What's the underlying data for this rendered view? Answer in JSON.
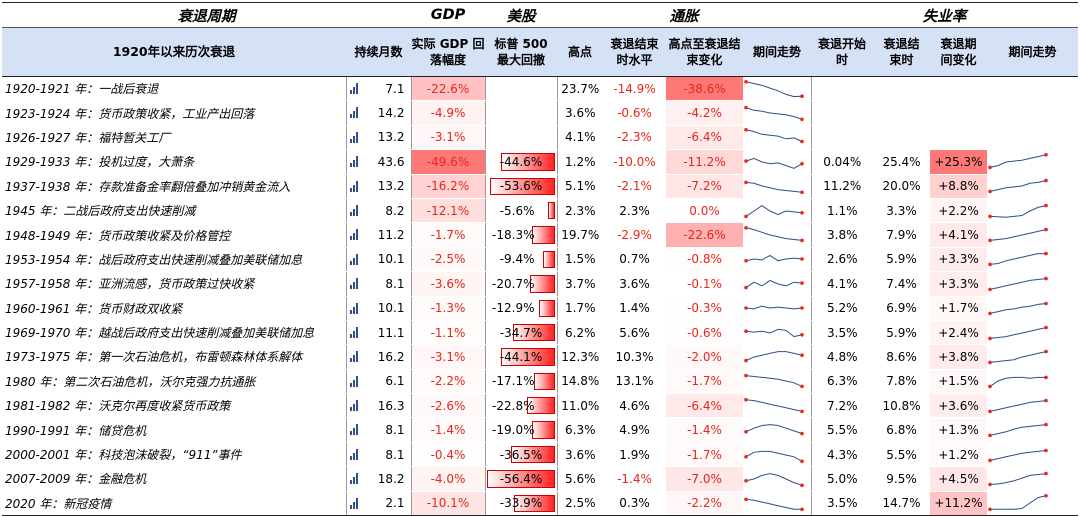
{
  "groups": {
    "recession": "衰退周期",
    "gdp": "GDP",
    "stocks": "美股",
    "inflation": "通胀",
    "unemployment": "失业率"
  },
  "headers": {
    "title": "1920年以来历次衰退",
    "duration": "持续月数",
    "gdp_drop": "实际 GDP 回落幅度",
    "sp500": "标普 500 最大回撤",
    "cpi_peak": "高点",
    "cpi_end": "衰退结束时水平",
    "cpi_change": "高点至衰退结束变化",
    "cpi_trend": "期间走势",
    "ue_start": "衰退开始时",
    "ue_end": "衰退结束时",
    "ue_change": "衰退期间变化",
    "ue_trend": "期间走势"
  },
  "rows": [
    {
      "name": "1920-1921 年：一战后衰退",
      "dur": "7.1",
      "gdp": "-22.6%",
      "gdp_v": 22.6,
      "sp": "",
      "sp_v": null,
      "peak": "23.7%",
      "end": "-14.9%",
      "chg": "-38.6%",
      "chg_v": 38.6,
      "ue_s": "",
      "ue_e": "",
      "ue_c": "",
      "ue_v": null,
      "cpi_line": [
        0.1,
        0.2,
        0.3,
        0.45,
        0.6,
        0.8,
        0.92,
        0.9
      ],
      "ue_line": null
    },
    {
      "name": "1923-1924 年：货币政策收紧，工业产出回落",
      "dur": "14.2",
      "gdp": "-4.9%",
      "gdp_v": 4.9,
      "sp": "",
      "sp_v": null,
      "peak": "3.6%",
      "end": "-0.6%",
      "chg": "-4.2%",
      "chg_v": 4.2,
      "ue_s": "",
      "ue_e": "",
      "ue_c": "",
      "ue_v": null,
      "cpi_line": [
        0.2,
        0.35,
        0.4,
        0.5,
        0.55,
        0.6,
        0.7,
        0.85
      ],
      "ue_line": null
    },
    {
      "name": "1926-1927 年：福特暂关工厂",
      "dur": "13.2",
      "gdp": "-3.1%",
      "gdp_v": 3.1,
      "sp": "",
      "sp_v": null,
      "peak": "4.1%",
      "end": "-2.3%",
      "chg": "-6.4%",
      "chg_v": 6.4,
      "ue_s": "",
      "ue_e": "",
      "ue_c": "",
      "ue_v": null,
      "cpi_line": [
        0.1,
        0.2,
        0.35,
        0.4,
        0.45,
        0.6,
        0.55,
        0.75
      ],
      "ue_line": null
    },
    {
      "name": "1929-1933 年：投机过度，大萧条",
      "dur": "43.6",
      "gdp": "-49.6%",
      "gdp_v": 49.6,
      "sp": "-44.6%",
      "sp_v": 44.6,
      "peak": "1.2%",
      "end": "-10.0%",
      "chg": "-11.2%",
      "chg_v": 11.2,
      "ue_s": "0.04%",
      "ue_e": "25.4%",
      "ue_c": "+25.3%",
      "ue_v": 25.3,
      "cpi_line": [
        0.45,
        0.3,
        0.5,
        0.6,
        0.55,
        0.7,
        0.85,
        0.6
      ],
      "ue_line": [
        0.8,
        0.7,
        0.5,
        0.45,
        0.4,
        0.3,
        0.2,
        0.1
      ]
    },
    {
      "name": "1937-1938 年：存款准备金率翻倍叠加冲销黄金流入",
      "dur": "13.2",
      "gdp": "-16.2%",
      "gdp_v": 16.2,
      "sp": "-53.6%",
      "sp_v": 53.6,
      "peak": "5.1%",
      "end": "-2.1%",
      "chg": "-7.2%",
      "chg_v": 7.2,
      "ue_s": "11.2%",
      "ue_e": "20.0%",
      "ue_c": "+8.8%",
      "ue_v": 8.8,
      "cpi_line": [
        0.3,
        0.35,
        0.5,
        0.6,
        0.7,
        0.75,
        0.8,
        0.85
      ],
      "ue_line": [
        0.8,
        0.7,
        0.6,
        0.55,
        0.5,
        0.35,
        0.3,
        0.2
      ]
    },
    {
      "name": "1945 年：二战后政府支出快速削减",
      "dur": "8.2",
      "gdp": "-12.1%",
      "gdp_v": 12.1,
      "sp": "-5.6%",
      "sp_v": 5.6,
      "peak": "2.3%",
      "end": "2.3%",
      "chg": "0.0%",
      "chg_v": 0,
      "ue_s": "1.1%",
      "ue_e": "3.3%",
      "ue_c": "+2.2%",
      "ue_v": 2.2,
      "cpi_line": [
        0.8,
        0.5,
        0.2,
        0.5,
        0.7,
        0.5,
        0.55,
        0.6
      ],
      "ue_line": [
        0.8,
        0.82,
        0.85,
        0.8,
        0.75,
        0.5,
        0.3,
        0.2
      ]
    },
    {
      "name": "1948-1949 年：货币政策收紧及价格管控",
      "dur": "11.2",
      "gdp": "-1.7%",
      "gdp_v": 1.7,
      "sp": "-18.3%",
      "sp_v": 18.3,
      "peak": "19.7%",
      "end": "-2.9%",
      "chg": "-22.6%",
      "chg_v": 22.6,
      "ue_s": "3.8%",
      "ue_e": "7.9%",
      "ue_c": "+4.1%",
      "ue_v": 4.1,
      "cpi_line": [
        0.1,
        0.2,
        0.35,
        0.5,
        0.6,
        0.7,
        0.75,
        0.8
      ],
      "ue_line": [
        0.8,
        0.75,
        0.7,
        0.6,
        0.5,
        0.4,
        0.3,
        0.2
      ]
    },
    {
      "name": "1953-1954 年：战后政府支出快速削减叠加美联储加息",
      "dur": "10.1",
      "gdp": "-2.5%",
      "gdp_v": 2.5,
      "sp": "-9.4%",
      "sp_v": 9.4,
      "peak": "1.5%",
      "end": "0.7%",
      "chg": "-0.8%",
      "chg_v": 0.8,
      "ue_s": "2.6%",
      "ue_e": "5.9%",
      "ue_c": "+3.3%",
      "ue_v": 3.3,
      "cpi_line": [
        0.6,
        0.5,
        0.55,
        0.3,
        0.6,
        0.5,
        0.45,
        0.5
      ],
      "ue_line": [
        0.8,
        0.75,
        0.6,
        0.5,
        0.4,
        0.3,
        0.2,
        0.2
      ]
    },
    {
      "name": "1957-1958 年：亚洲流感，货币政策过快收紧",
      "dur": "8.1",
      "gdp": "-3.6%",
      "gdp_v": 3.6,
      "sp": "-20.7%",
      "sp_v": 20.7,
      "peak": "3.7%",
      "end": "3.6%",
      "chg": "-0.1%",
      "chg_v": 0.1,
      "ue_s": "4.1%",
      "ue_e": "7.4%",
      "ue_c": "+3.3%",
      "ue_v": 3.3,
      "cpi_line": [
        0.7,
        0.4,
        0.6,
        0.3,
        0.5,
        0.6,
        0.4,
        0.45
      ],
      "ue_line": [
        0.8,
        0.7,
        0.6,
        0.5,
        0.4,
        0.3,
        0.25,
        0.2
      ]
    },
    {
      "name": "1960-1961 年：货币财政双收紧",
      "dur": "10.1",
      "gdp": "-1.3%",
      "gdp_v": 1.3,
      "sp": "-12.9%",
      "sp_v": 12.9,
      "peak": "1.7%",
      "end": "1.4%",
      "chg": "-0.3%",
      "chg_v": 0.3,
      "ue_s": "5.2%",
      "ue_e": "6.9%",
      "ue_c": "+1.7%",
      "ue_v": 1.7,
      "cpi_line": [
        0.5,
        0.55,
        0.4,
        0.5,
        0.45,
        0.5,
        0.55,
        0.5
      ],
      "ue_line": [
        0.8,
        0.7,
        0.6,
        0.55,
        0.45,
        0.4,
        0.3,
        0.25
      ]
    },
    {
      "name": "1969-1970 年：越战后政府支出快速削减叠加美联储加息",
      "dur": "11.1",
      "gdp": "-1.1%",
      "gdp_v": 1.1,
      "sp": "-34.7%",
      "sp_v": 34.7,
      "peak": "6.2%",
      "end": "5.6%",
      "chg": "-0.6%",
      "chg_v": 0.6,
      "ue_s": "3.5%",
      "ue_e": "5.9%",
      "ue_c": "+2.4%",
      "ue_v": 2.4,
      "cpi_line": [
        0.4,
        0.45,
        0.4,
        0.5,
        0.3,
        0.35,
        0.7,
        0.6
      ],
      "ue_line": [
        0.8,
        0.75,
        0.7,
        0.6,
        0.5,
        0.4,
        0.3,
        0.2
      ]
    },
    {
      "name": "1973-1975 年：第一次石油危机，布雷顿森林体系解体",
      "dur": "16.2",
      "gdp": "-3.1%",
      "gdp_v": 3.1,
      "sp": "-44.1%",
      "sp_v": 44.1,
      "peak": "12.3%",
      "end": "10.3%",
      "chg": "-2.0%",
      "chg_v": 2.0,
      "ue_s": "4.8%",
      "ue_e": "8.6%",
      "ue_c": "+3.8%",
      "ue_v": 3.8,
      "cpi_line": [
        0.7,
        0.5,
        0.4,
        0.3,
        0.2,
        0.2,
        0.3,
        0.4
      ],
      "ue_line": [
        0.8,
        0.75,
        0.7,
        0.65,
        0.5,
        0.4,
        0.3,
        0.2
      ]
    },
    {
      "name": "1980 年：第二次石油危机，沃尔克强力抗通胀",
      "dur": "6.1",
      "gdp": "-2.2%",
      "gdp_v": 2.2,
      "sp": "-17.1%",
      "sp_v": 17.1,
      "peak": "14.8%",
      "end": "13.1%",
      "chg": "-1.7%",
      "chg_v": 1.7,
      "ue_s": "6.3%",
      "ue_e": "7.8%",
      "ue_c": "+1.5%",
      "ue_v": 1.5,
      "cpi_line": [
        0.2,
        0.25,
        0.3,
        0.35,
        0.4,
        0.5,
        0.6,
        0.8
      ],
      "ue_line": [
        0.8,
        0.5,
        0.35,
        0.3,
        0.3,
        0.35,
        0.3,
        0.3
      ]
    },
    {
      "name": "1981-1982 年：沃克尔再度收紧货币政策",
      "dur": "16.3",
      "gdp": "-2.6%",
      "gdp_v": 2.6,
      "sp": "-22.8%",
      "sp_v": 22.8,
      "peak": "11.0%",
      "end": "4.6%",
      "chg": "-6.4%",
      "chg_v": 6.4,
      "ue_s": "7.2%",
      "ue_e": "10.8%",
      "ue_c": "+3.6%",
      "ue_v": 3.6,
      "cpi_line": [
        0.15,
        0.2,
        0.3,
        0.4,
        0.5,
        0.6,
        0.7,
        0.8
      ],
      "ue_line": [
        0.8,
        0.7,
        0.6,
        0.5,
        0.4,
        0.3,
        0.25,
        0.2
      ]
    },
    {
      "name": "1990-1991 年：储贷危机",
      "dur": "8.1",
      "gdp": "-1.4%",
      "gdp_v": 1.4,
      "sp": "-19.0%",
      "sp_v": 19.0,
      "peak": "6.3%",
      "end": "4.9%",
      "chg": "-1.4%",
      "chg_v": 1.4,
      "ue_s": "5.5%",
      "ue_e": "6.8%",
      "ue_c": "+1.3%",
      "ue_v": 1.3,
      "cpi_line": [
        0.6,
        0.4,
        0.25,
        0.2,
        0.25,
        0.4,
        0.55,
        0.7
      ],
      "ue_line": [
        0.8,
        0.7,
        0.6,
        0.45,
        0.35,
        0.3,
        0.25,
        0.2
      ]
    },
    {
      "name": "2000-2001 年：科技泡沫破裂，“911”事件",
      "dur": "8.1",
      "gdp": "-0.4%",
      "gdp_v": 0.4,
      "sp": "-36.5%",
      "sp_v": 36.5,
      "peak": "3.6%",
      "end": "1.9%",
      "chg": "-1.7%",
      "chg_v": 1.7,
      "ue_s": "4.3%",
      "ue_e": "5.5%",
      "ue_c": "+1.2%",
      "ue_v": 1.2,
      "cpi_line": [
        0.6,
        0.35,
        0.3,
        0.3,
        0.4,
        0.5,
        0.6,
        0.85
      ],
      "ue_line": [
        0.8,
        0.7,
        0.6,
        0.5,
        0.4,
        0.35,
        0.3,
        0.25
      ]
    },
    {
      "name": "2007-2009 年：金融危机",
      "dur": "18.2",
      "gdp": "-4.0%",
      "gdp_v": 4.0,
      "sp": "-56.4%",
      "sp_v": 56.4,
      "peak": "5.6%",
      "end": "-1.4%",
      "chg": "-7.0%",
      "chg_v": 7.0,
      "ue_s": "5.0%",
      "ue_e": "9.5%",
      "ue_c": "+4.5%",
      "ue_v": 4.5,
      "cpi_line": [
        0.6,
        0.5,
        0.3,
        0.2,
        0.3,
        0.5,
        0.7,
        0.85
      ],
      "ue_line": [
        0.8,
        0.78,
        0.7,
        0.6,
        0.45,
        0.3,
        0.25,
        0.2
      ]
    },
    {
      "name": "2020 年：新冠疫情",
      "dur": "2.1",
      "gdp": "-10.1%",
      "gdp_v": 10.1,
      "sp": "-33.9%",
      "sp_v": 33.9,
      "peak": "2.5%",
      "end": "0.3%",
      "chg": "-2.2%",
      "chg_v": 2.2,
      "ue_s": "3.5%",
      "ue_e": "14.7%",
      "ue_c": "+11.2%",
      "ue_v": 11.2,
      "cpi_line": [
        0.3,
        0.35,
        0.45,
        0.55,
        0.65,
        0.75,
        0.85,
        0.85
      ],
      "ue_line": [
        0.85,
        0.85,
        0.85,
        0.85,
        0.8,
        0.5,
        0.2,
        0.1
      ]
    }
  ],
  "colors": {
    "header_bg": "#d5e1f4",
    "red_text": "#e8261a",
    "heat_max": "#f5a3a3",
    "bar_fill": "#ff2222",
    "spark_line": "#2f4e8c",
    "spark_dot": "#e8261a"
  }
}
